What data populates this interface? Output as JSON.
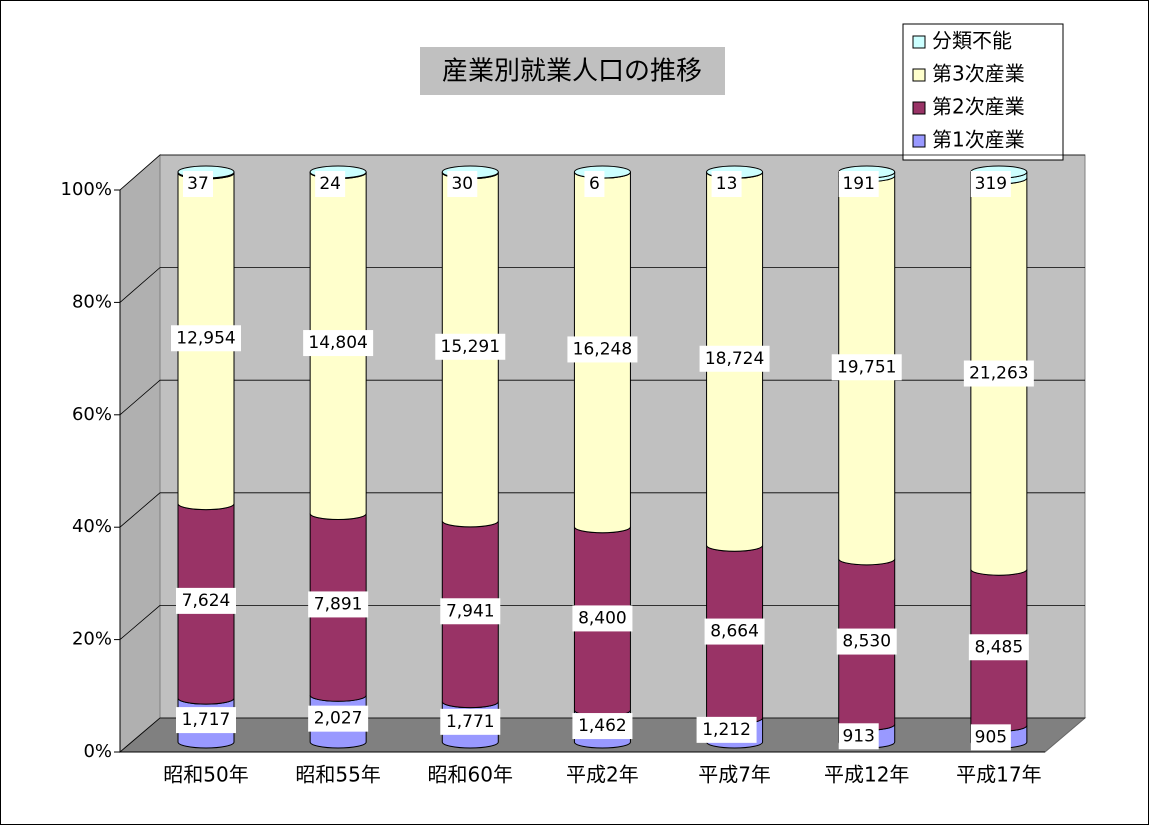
{
  "chart_data": {
    "type": "bar",
    "stacked": "percent",
    "shape": "cylinder",
    "title": "産業別就業人口の推移",
    "categories": [
      "昭和50年",
      "昭和55年",
      "昭和60年",
      "平成2年",
      "平成7年",
      "平成12年",
      "平成17年"
    ],
    "series": [
      {
        "name": "第1次産業",
        "color": "#9999ff",
        "values": [
          1717,
          2027,
          1771,
          1462,
          1212,
          913,
          905
        ],
        "value_labels": [
          "1,717",
          "2,027",
          "1,771",
          "1,462",
          "1,212",
          "913",
          "905"
        ]
      },
      {
        "name": "第2次産業",
        "color": "#993366",
        "values": [
          7624,
          7891,
          7941,
          8400,
          8664,
          8530,
          8485
        ],
        "value_labels": [
          "7,624",
          "7,891",
          "7,941",
          "8,400",
          "8,664",
          "8,530",
          "8,485"
        ]
      },
      {
        "name": "第3次産業",
        "color": "#ffffcc",
        "values": [
          12954,
          14804,
          15291,
          16248,
          18724,
          19751,
          21263
        ],
        "value_labels": [
          "12,954",
          "14,804",
          "15,291",
          "16,248",
          "18,724",
          "19,751",
          "21,263"
        ]
      },
      {
        "name": "分類不能",
        "color": "#ccffff",
        "values": [
          37,
          24,
          30,
          6,
          13,
          191,
          319
        ],
        "value_labels": [
          "37",
          "24",
          "30",
          "6",
          "13",
          "191",
          "319"
        ]
      }
    ],
    "ylim": [
      0,
      100
    ],
    "yticks": [
      {
        "value": 0,
        "label": "0%"
      },
      {
        "value": 20,
        "label": "20%"
      },
      {
        "value": 40,
        "label": "40%"
      },
      {
        "value": 60,
        "label": "60%"
      },
      {
        "value": 80,
        "label": "80%"
      },
      {
        "value": 100,
        "label": "100%"
      }
    ],
    "grid": true,
    "legend": "top-right"
  }
}
